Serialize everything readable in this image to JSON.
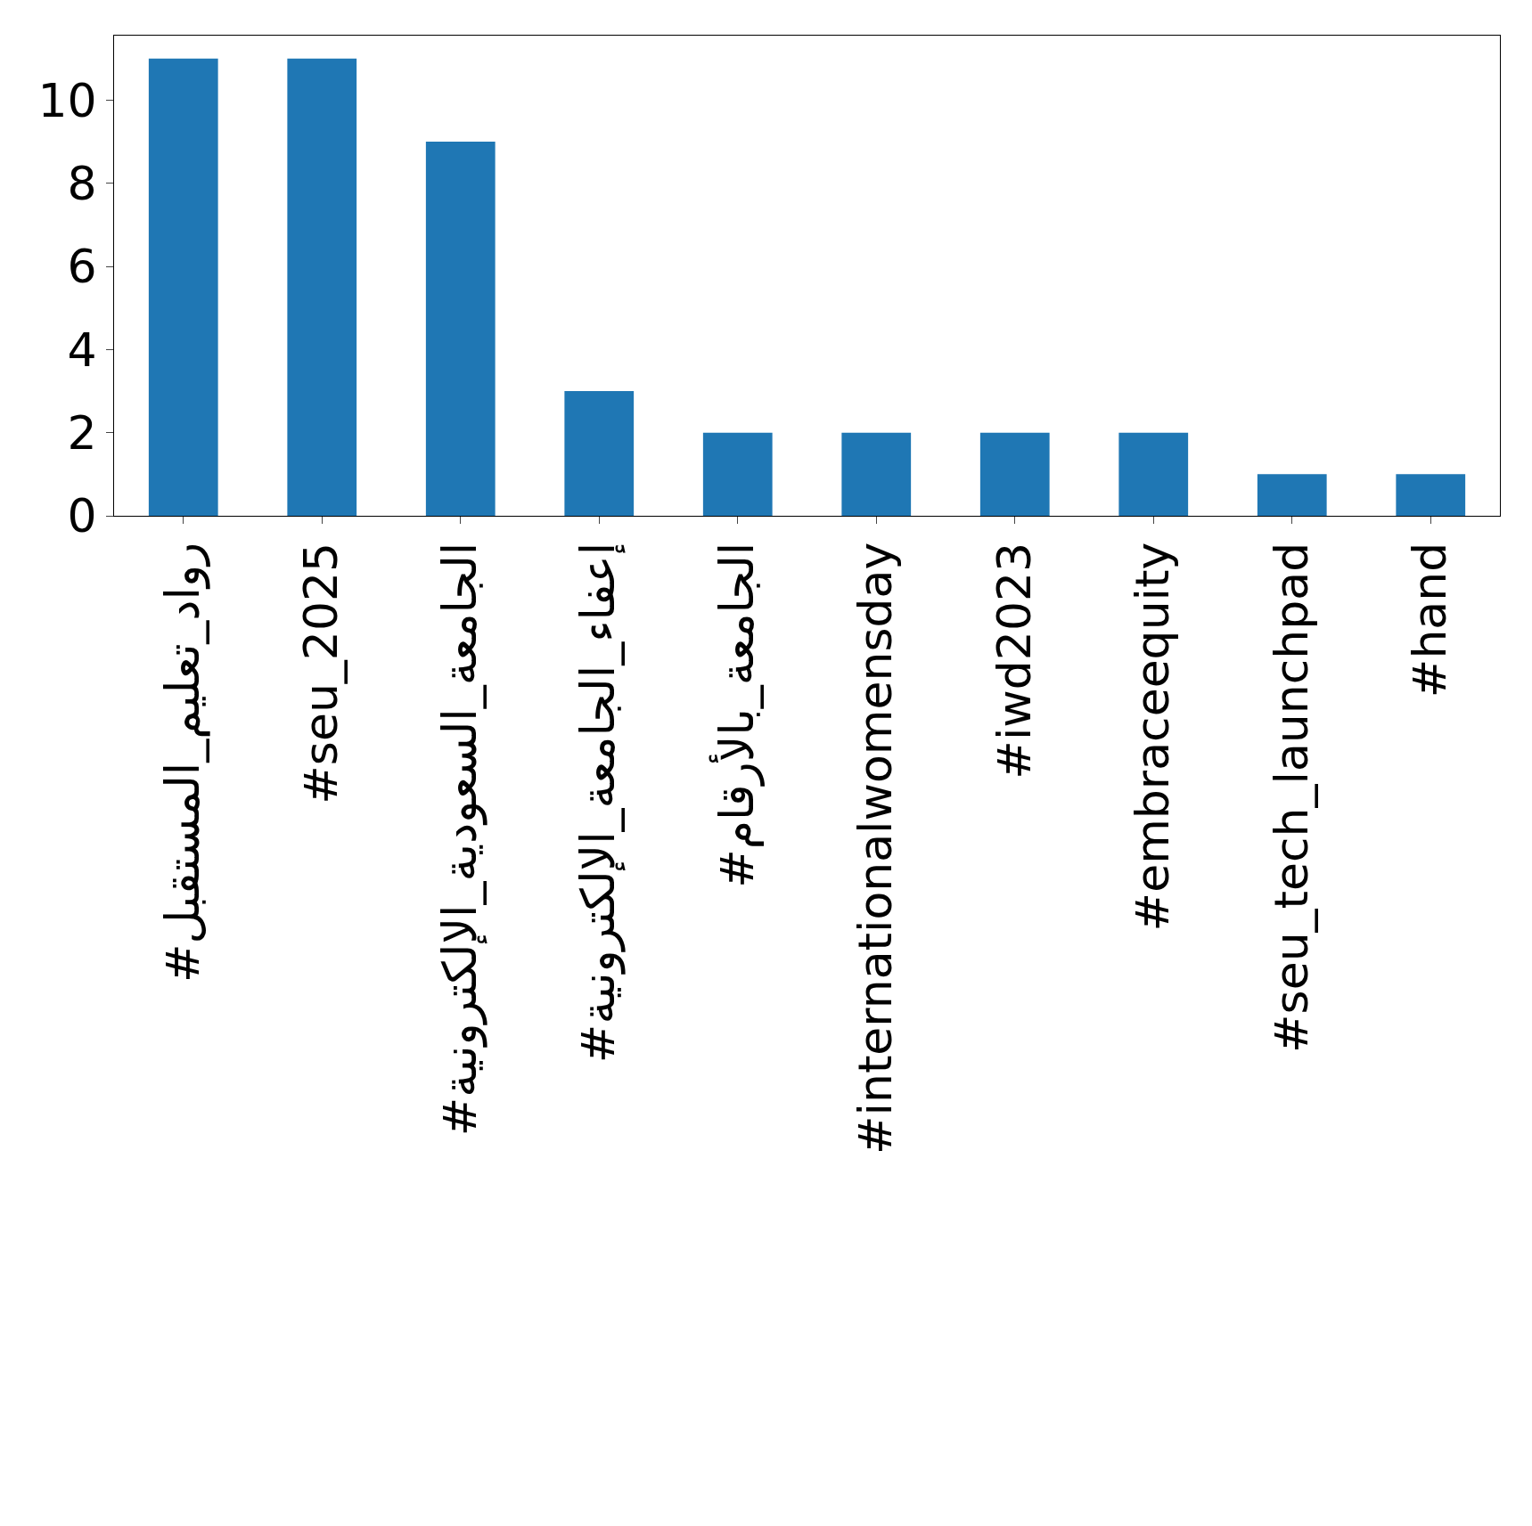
{
  "chart_data": {
    "type": "bar",
    "categories": [
      "#رواد_تعليم_المستقبل",
      "#seu_2025",
      "#الجامعة_السعودية_الإلكترونية",
      "#إعفاء_الجامعة_الإلكترونية",
      "#الجامعة_بالأرقام",
      "#internationalwomensday",
      "#iwd2023",
      "#embraceequity",
      "#seu_tech_launchpad",
      "#hand"
    ],
    "values": [
      11,
      11,
      9,
      3,
      2,
      2,
      2,
      2,
      1,
      1
    ],
    "color": "#1f77b4",
    "ylim": [
      0,
      11.55
    ],
    "yticks": [
      0,
      2,
      4,
      6,
      8,
      10
    ]
  }
}
